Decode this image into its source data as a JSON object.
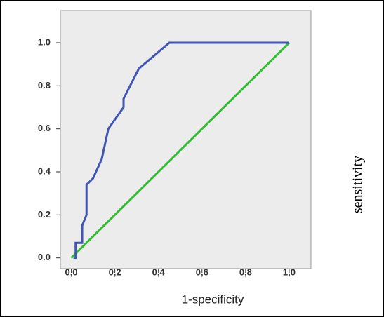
{
  "chart_data": {
    "type": "line",
    "x_label": "1-specificity",
    "y_label": "sensitivity",
    "xlim": [
      -0.05,
      1.1
    ],
    "ylim": [
      -0.05,
      1.15
    ],
    "xticks": [
      {
        "value": 0,
        "label": "0,0"
      },
      {
        "value": 0.2,
        "label": "0,2"
      },
      {
        "value": 0.4,
        "label": "0,4"
      },
      {
        "value": 0.6,
        "label": "0,6"
      },
      {
        "value": 0.8,
        "label": "0,8"
      },
      {
        "value": 1,
        "label": "1,0"
      }
    ],
    "yticks": [
      {
        "value": 0,
        "label": "0.0"
      },
      {
        "value": 0.2,
        "label": "0.2"
      },
      {
        "value": 0.4,
        "label": "0.4"
      },
      {
        "value": 0.6,
        "label": "0.6"
      },
      {
        "value": 0.8,
        "label": "0.8"
      },
      {
        "value": 1,
        "label": "1.0"
      }
    ],
    "series": [
      {
        "color": "#4055b4",
        "x": [
          0.01,
          0.02,
          0.02,
          0.05,
          0.05,
          0.07,
          0.07,
          0.1,
          0.14,
          0.17,
          0.24,
          0.24,
          0.31,
          0.45,
          1.0
        ],
        "values": [
          0.0,
          0.0,
          0.07,
          0.07,
          0.15,
          0.2,
          0.34,
          0.37,
          0.46,
          0.6,
          0.7,
          0.74,
          0.88,
          1.0,
          1.0
        ]
      },
      {
        "color": "#33bb33",
        "x": [
          0,
          1
        ],
        "values": [
          0,
          1
        ]
      }
    ]
  }
}
